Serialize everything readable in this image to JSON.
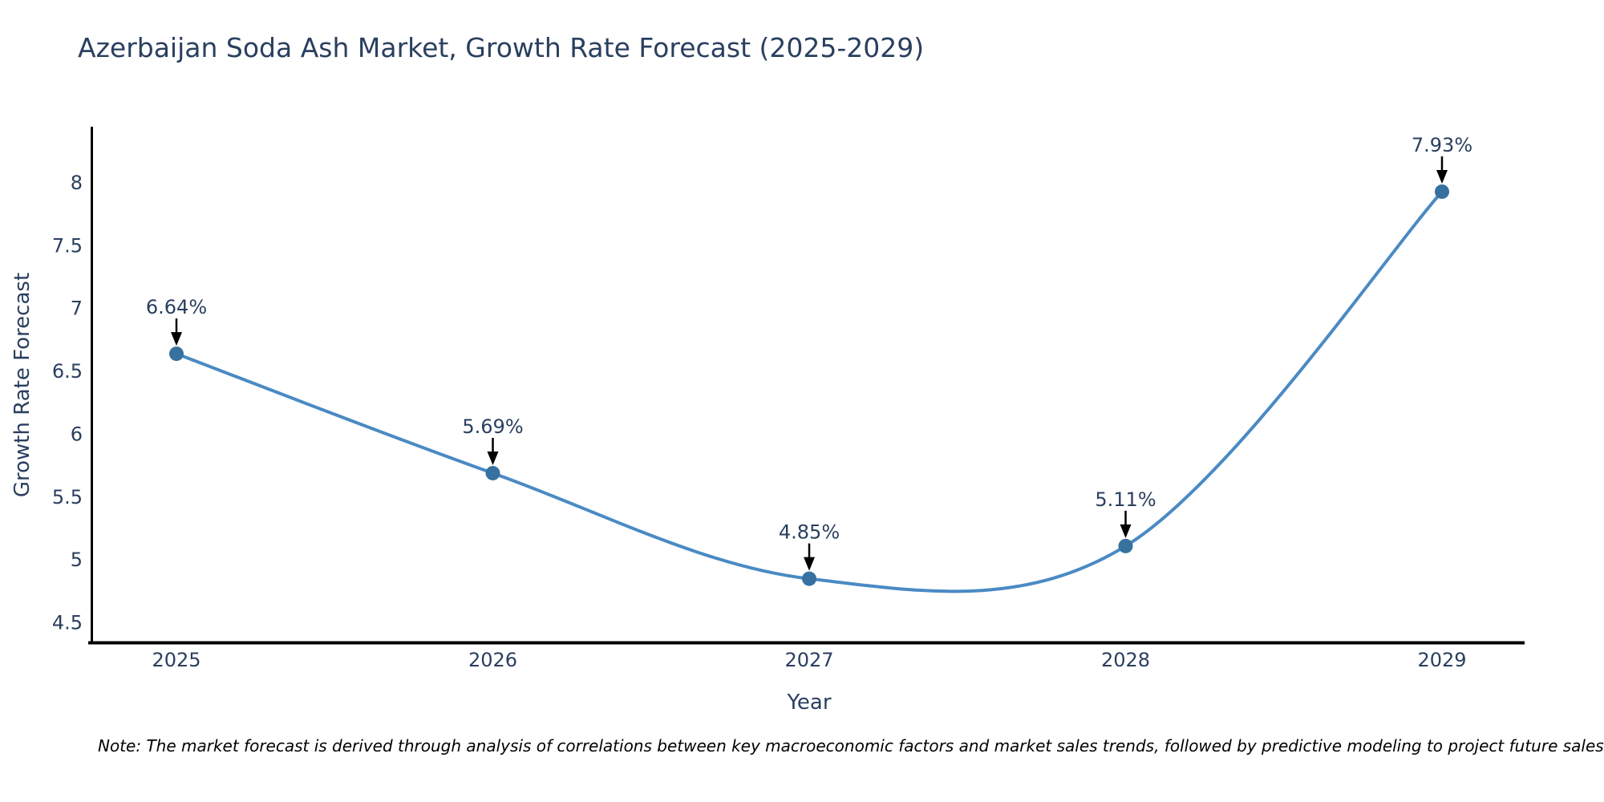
{
  "title": "Azerbaijan Soda Ash Market, Growth Rate Forecast (2025-2029)",
  "note": "Note: The market forecast is derived through analysis of correlations between key macroeconomic factors and market sales trends, followed by predictive modeling to project future sales",
  "chart_data": {
    "type": "line",
    "line_shape": "spline",
    "title": "Azerbaijan Soda Ash Market, Growth Rate Forecast (2025-2029)",
    "xlabel": "Year",
    "ylabel": "Growth Rate Forecast",
    "x": [
      2025,
      2026,
      2027,
      2028,
      2029
    ],
    "xticks": [
      "2025",
      "2026",
      "2027",
      "2028",
      "2029"
    ],
    "y": [
      6.64,
      5.69,
      4.85,
      5.11,
      7.93
    ],
    "point_labels": [
      "6.64%",
      "5.69%",
      "4.85%",
      "5.11%",
      "7.93%"
    ],
    "yticks": [
      8,
      7.5,
      7,
      6.5,
      6,
      5.5,
      5,
      4.5
    ],
    "ylim": [
      4.34,
      8.45
    ],
    "grid": false,
    "legend_position": "none",
    "colors": {
      "line": "#4a8ac4",
      "marker": "#36719f",
      "axis_line": "#000000",
      "tick_text": "#2a3f5f",
      "annotation_text": "#2a3f5f",
      "annotation_arrow": "#000000",
      "background": "#ffffff"
    }
  }
}
